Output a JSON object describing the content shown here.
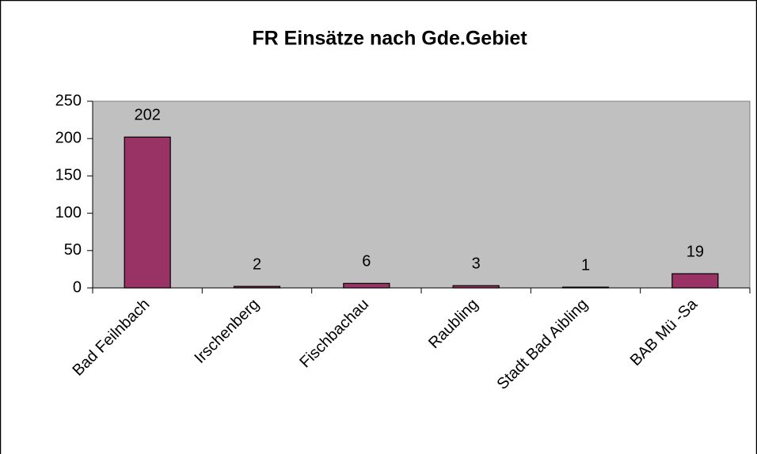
{
  "chart_data": {
    "type": "bar",
    "title": "FR Einsätze nach Gde.Gebiet",
    "categories": [
      "Bad Feilnbach",
      "Irschenberg",
      "Fischbachau",
      "Raubling",
      "Stadt Bad Aibling",
      "BAB Mü -Sa"
    ],
    "values": [
      202,
      2,
      6,
      3,
      1,
      19
    ],
    "color": "#993366",
    "ylim": [
      0,
      250
    ],
    "yticks": [
      0,
      50,
      100,
      150,
      200,
      250
    ],
    "grid": false
  }
}
